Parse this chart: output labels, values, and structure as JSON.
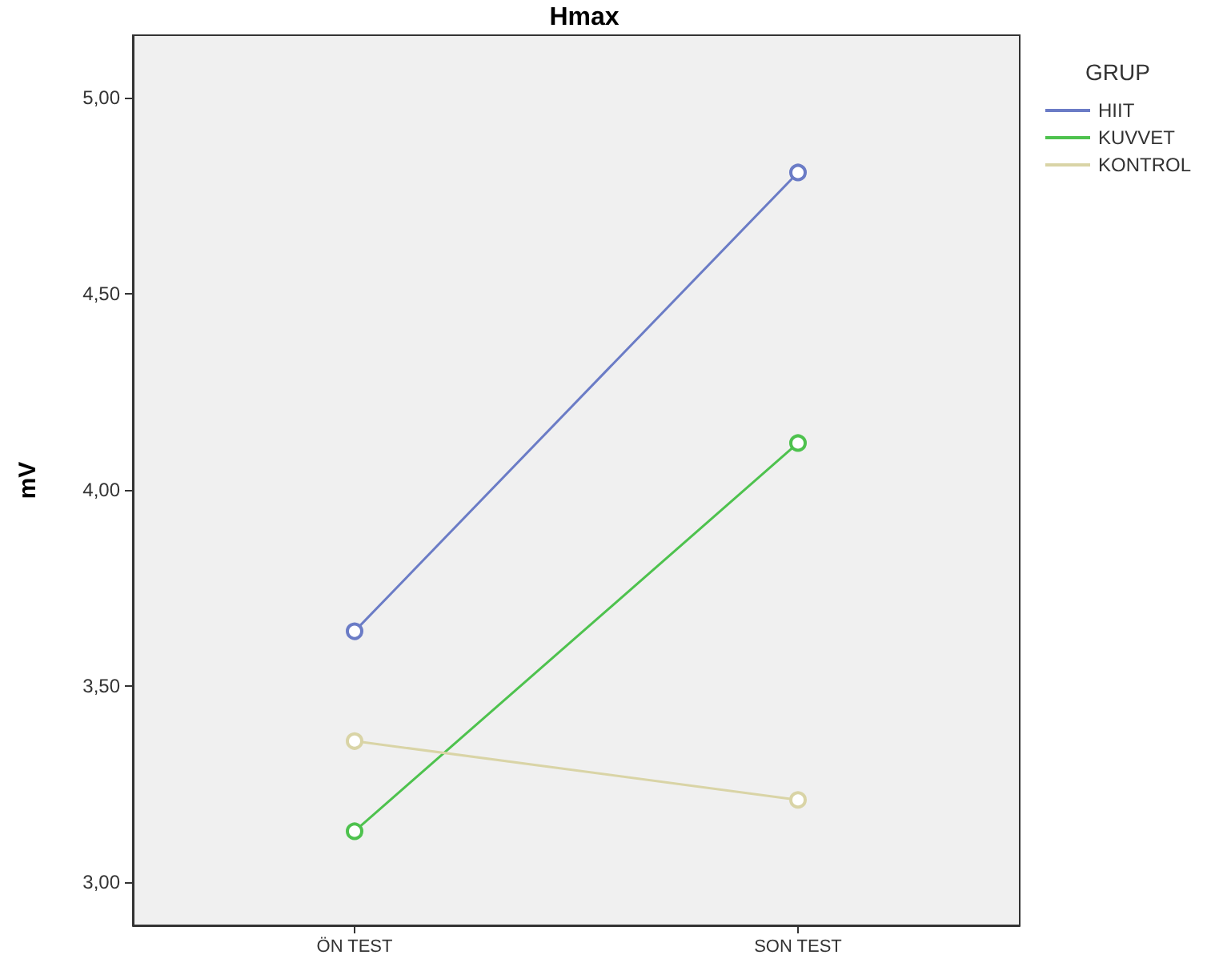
{
  "chart_data": {
    "type": "line",
    "title": "Hmax",
    "ylabel": "mV",
    "legend_title": "GRUP",
    "categories": [
      "ÖN TEST",
      "SON TEST"
    ],
    "series": [
      {
        "name": "HIIT",
        "color": "#6b7cc6",
        "values": [
          3.64,
          4.81
        ]
      },
      {
        "name": "KUVVET",
        "color": "#4ec24e",
        "values": [
          3.13,
          4.12
        ]
      },
      {
        "name": "KONTROL",
        "color": "#d9d4a6",
        "values": [
          3.36,
          3.21
        ]
      }
    ],
    "ylim": [
      2.89,
      5.16
    ],
    "yticks": [
      {
        "value": 3,
        "label": "3,00"
      },
      {
        "value": 3.5,
        "label": "3,50"
      },
      {
        "value": 4,
        "label": "4,00"
      },
      {
        "value": 4.5,
        "label": "4,50"
      },
      {
        "value": 5,
        "label": "5,00"
      }
    ],
    "grid": false,
    "legend": "right",
    "marker": "circle",
    "line_style": "solid"
  }
}
